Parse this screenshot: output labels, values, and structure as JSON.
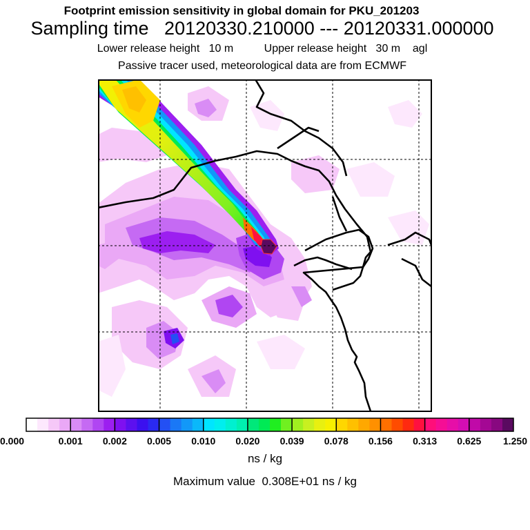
{
  "header": {
    "title": "Footprint emission sensitivity in global domain for PKU_201203",
    "sampling_label": "Sampling time",
    "sampling_start": "20120330.210000",
    "sampling_sep": "---",
    "sampling_end": "20120331.000000",
    "lower_label": "Lower release height",
    "lower_value": "10 m",
    "upper_label": "Upper release height",
    "upper_value": "30 m",
    "upper_suffix": "agl",
    "description": "Passive tracer used, meteorological data are from ECMWF"
  },
  "colors": {
    "land_outline": "#000000",
    "grid": "#000000",
    "plume_core": "#ff0000",
    "receptor": "#000000"
  },
  "legend": {
    "tick_labels": [
      "0.000",
      "0.001",
      "0.002",
      "0.005",
      "0.010",
      "0.020",
      "0.039",
      "0.078",
      "0.156",
      "0.313",
      "0.625",
      "1.250"
    ],
    "bins": [
      [
        "#ffffff",
        "#fde8fd",
        "#f6c8f8",
        "#eaa8f6"
      ],
      [
        "#d98cf5",
        "#c56af3",
        "#b046f2",
        "#9c1ff0"
      ],
      [
        "#7f10f0",
        "#5c10ef",
        "#3b10ef",
        "#2a2af2"
      ],
      [
        "#2350f4",
        "#1a78f6",
        "#1298f8",
        "#0ab8fa"
      ],
      [
        "#00e5ff",
        "#00eeee",
        "#00f0d0",
        "#00f0b0"
      ],
      [
        "#00e87a",
        "#00ea55",
        "#20ee20",
        "#70f020"
      ],
      [
        "#a0f020",
        "#c8f020",
        "#e8f010",
        "#f7f000"
      ],
      [
        "#ffd700",
        "#ffc000",
        "#ffa800",
        "#ff9000"
      ],
      [
        "#ff7000",
        "#ff4c00",
        "#ff2a10",
        "#ff1040"
      ],
      [
        "#ff0e7a",
        "#f50e95",
        "#e60ea8",
        "#d40eb4"
      ],
      [
        "#c00aa8",
        "#a40894",
        "#880880",
        "#5a0a60"
      ]
    ],
    "unit": "ns / kg"
  },
  "footer": {
    "max_label": "Maximum value",
    "max_value": "0.308E+01",
    "max_unit": "ns / kg"
  }
}
